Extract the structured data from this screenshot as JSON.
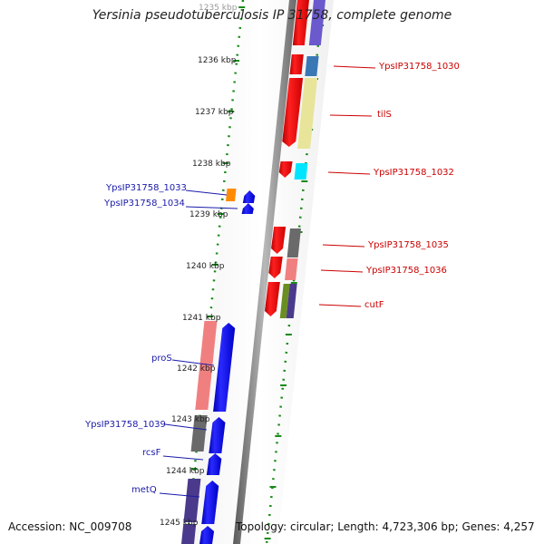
{
  "title": "Yersinia pseudotuberculosis IP 31758, complete genome",
  "accession": "Accession: NC_009708",
  "summary": "Topology: circular; Length: 4,723,306 bp; Genes: 4,257",
  "kbp_ticks": [
    "1235 kbp",
    "1236 kbp",
    "1237 kbp",
    "1238 kbp",
    "1239 kbp",
    "1240 kbp",
    "1241 kbp",
    "1242 kbp",
    "1243 kbp",
    "1244 kbp",
    "1245 kbp"
  ],
  "right_labels": [
    "YpsIP31758_1030",
    "tilS",
    "YpsIP31758_1032",
    "YpsIP31758_1035",
    "YpsIP31758_1036",
    "cutF"
  ],
  "left_labels": [
    "YpsIP31758_1033",
    "YpsIP31758_1034",
    "proS",
    "YpsIP31758_1039",
    "rcsF",
    "metQ"
  ],
  "colors": {
    "forward_cds": "#ff0000",
    "reverse_cds": "#0000ff",
    "tick_green": "#1a8a1a",
    "backbone": "#808080",
    "label_red": "#cc0000",
    "label_blue": "#1a1aaa"
  }
}
